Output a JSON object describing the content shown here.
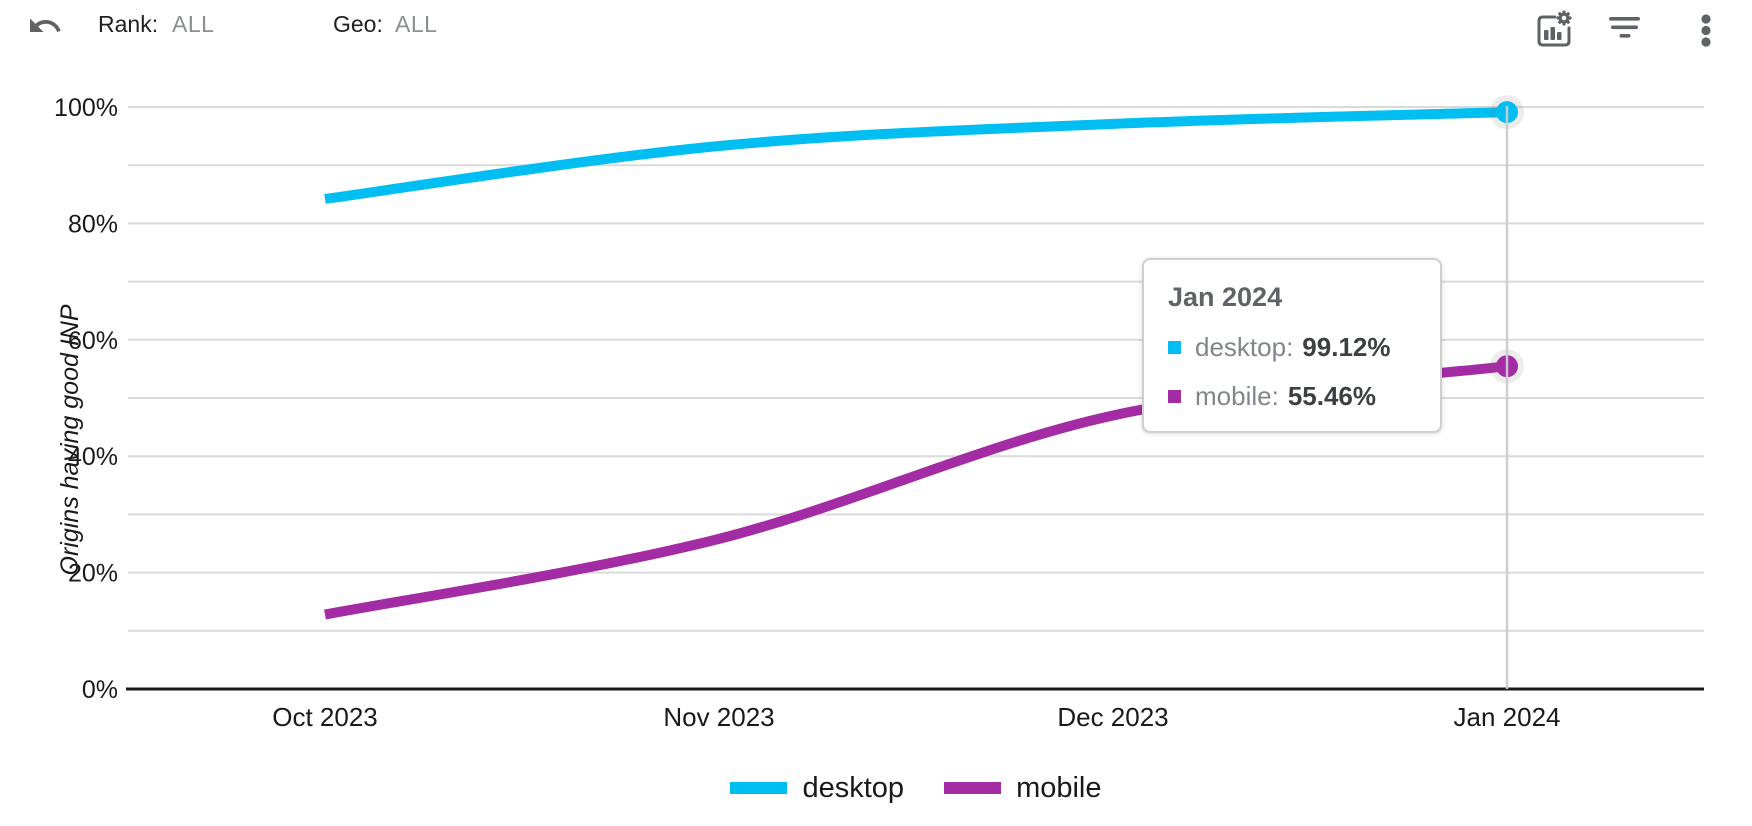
{
  "toolbar": {
    "rank": {
      "label": "Rank:",
      "value": "ALL"
    },
    "geo": {
      "label": "Geo:",
      "value": "ALL"
    },
    "icons": {
      "undo": "undo-arrow",
      "chart_options": "chart-settings",
      "filter": "filter-list",
      "more": "three-dot-menu"
    },
    "icon_color": "#5f6368"
  },
  "chart_data": {
    "type": "line",
    "title": "",
    "xlabel": "",
    "ylabel": "Origins having good INP",
    "x": [
      "Oct 2023",
      "Nov 2023",
      "Dec 2023",
      "Jan 2024"
    ],
    "series": [
      {
        "name": "desktop",
        "color": "#00BEF2",
        "values": [
          84.2,
          93.3,
          97.1,
          99.12
        ]
      },
      {
        "name": "mobile",
        "color": "#A32BA3",
        "values": [
          12.8,
          25.8,
          47.0,
          55.46
        ]
      }
    ],
    "ylim": [
      0,
      100
    ],
    "ytick_labels": [
      "0%",
      "20%",
      "40%",
      "60%",
      "80%",
      "100%"
    ],
    "grid_step_pct": 10,
    "grid": true,
    "legend_position": "bottom",
    "selected_x": "Jan 2024",
    "selected_values": {
      "desktop": "99.12%",
      "mobile": "55.46%"
    }
  },
  "tooltip": {
    "title": "Jan 2024",
    "rows": [
      {
        "label": "desktop:",
        "value": "99.12%",
        "color": "#00BEF2"
      },
      {
        "label": "mobile:",
        "value": "55.46%",
        "color": "#A32BA3"
      }
    ]
  },
  "legend": {
    "items": [
      {
        "label": "desktop",
        "color": "#00BEF2"
      },
      {
        "label": "mobile",
        "color": "#A32BA3"
      }
    ]
  },
  "colors": {
    "grid": "#dadada",
    "axis": "#1a1a1a",
    "tick_text": "#1a1a1a",
    "selection_line": "#cccccc"
  }
}
